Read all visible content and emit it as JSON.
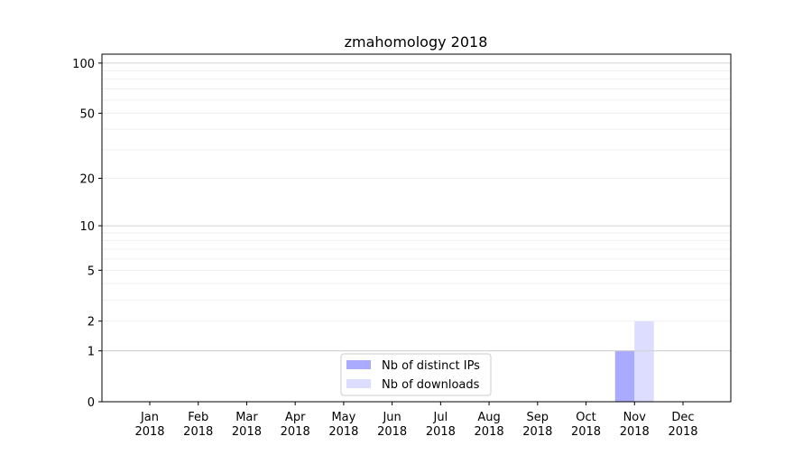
{
  "chart_data": {
    "type": "bar",
    "title": "zmahomology 2018",
    "xlabel": "",
    "ylabel": "",
    "y_scale": "log(1+y)",
    "ylim": [
      0,
      113
    ],
    "yticks": [
      0,
      1,
      2,
      5,
      10,
      20,
      50,
      100
    ],
    "grid": true,
    "legend_placement": "bottom-center",
    "categories": [
      "Jan\n2018",
      "Feb\n2018",
      "Mar\n2018",
      "Apr\n2018",
      "May\n2018",
      "Jun\n2018",
      "Jul\n2018",
      "Aug\n2018",
      "Sep\n2018",
      "Oct\n2018",
      "Nov\n2018",
      "Dec\n2018"
    ],
    "series": [
      {
        "name": "Nb of distinct IPs",
        "color": "#aaaaff",
        "values": [
          0,
          0,
          0,
          0,
          0,
          0,
          0,
          0,
          0,
          0,
          1,
          0
        ]
      },
      {
        "name": "Nb of downloads",
        "color": "#ddddff",
        "values": [
          0,
          0,
          0,
          0,
          0,
          0,
          0,
          0,
          0,
          0,
          2,
          0
        ]
      }
    ]
  }
}
